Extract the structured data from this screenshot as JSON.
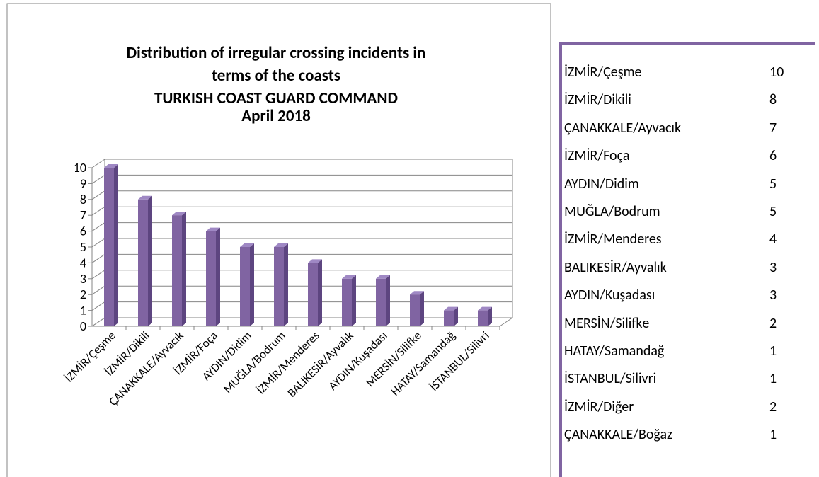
{
  "chart_data": {
    "type": "bar",
    "title": [
      "Distribution of irregular crossing incidents in",
      "terms of the coasts",
      "TURKISH COAST GUARD COMMAND",
      "April 2018"
    ],
    "categories": [
      "İZMİR/Çeşme",
      "İZMİR/Dikili",
      "ÇANAKKALE/Ayvacık",
      "İZMİR/Foça",
      "AYDIN/Didim",
      "MUĞLA/Bodrum",
      "İZMİR/Menderes",
      "BALIKESİR/Ayvalık",
      "AYDIN/Kuşadası",
      "MERSİN/Silifke",
      "HATAY/Samandağ",
      "İSTANBUL/Silivri"
    ],
    "values": [
      10,
      8,
      7,
      6,
      5,
      5,
      4,
      3,
      3,
      2,
      1,
      1
    ],
    "color": "#8064a2",
    "ylim": [
      0,
      10
    ],
    "yticks": [
      0,
      1,
      2,
      3,
      4,
      5,
      6,
      7,
      8,
      9,
      10
    ],
    "grid": true
  },
  "table": {
    "rows": [
      [
        "İZMİR/Çeşme",
        "10"
      ],
      [
        "İZMİR/Dikili",
        "8"
      ],
      [
        "ÇANAKKALE/Ayvacık",
        "7"
      ],
      [
        "İZMİR/Foça",
        "6"
      ],
      [
        "AYDIN/Didim",
        "5"
      ],
      [
        "MUĞLA/Bodrum",
        "5"
      ],
      [
        "İZMİR/Menderes",
        "4"
      ],
      [
        "BALIKESİR/Ayvalık",
        "3"
      ],
      [
        "AYDIN/Kuşadası",
        "3"
      ],
      [
        "MERSİN/Silifke",
        "2"
      ],
      [
        "HATAY/Samandağ",
        "1"
      ],
      [
        "İSTANBUL/Silivri",
        "1"
      ],
      [
        "İZMİR/Diğer",
        "2"
      ],
      [
        "ÇANAKKALE/Boğaz",
        "1"
      ]
    ]
  }
}
